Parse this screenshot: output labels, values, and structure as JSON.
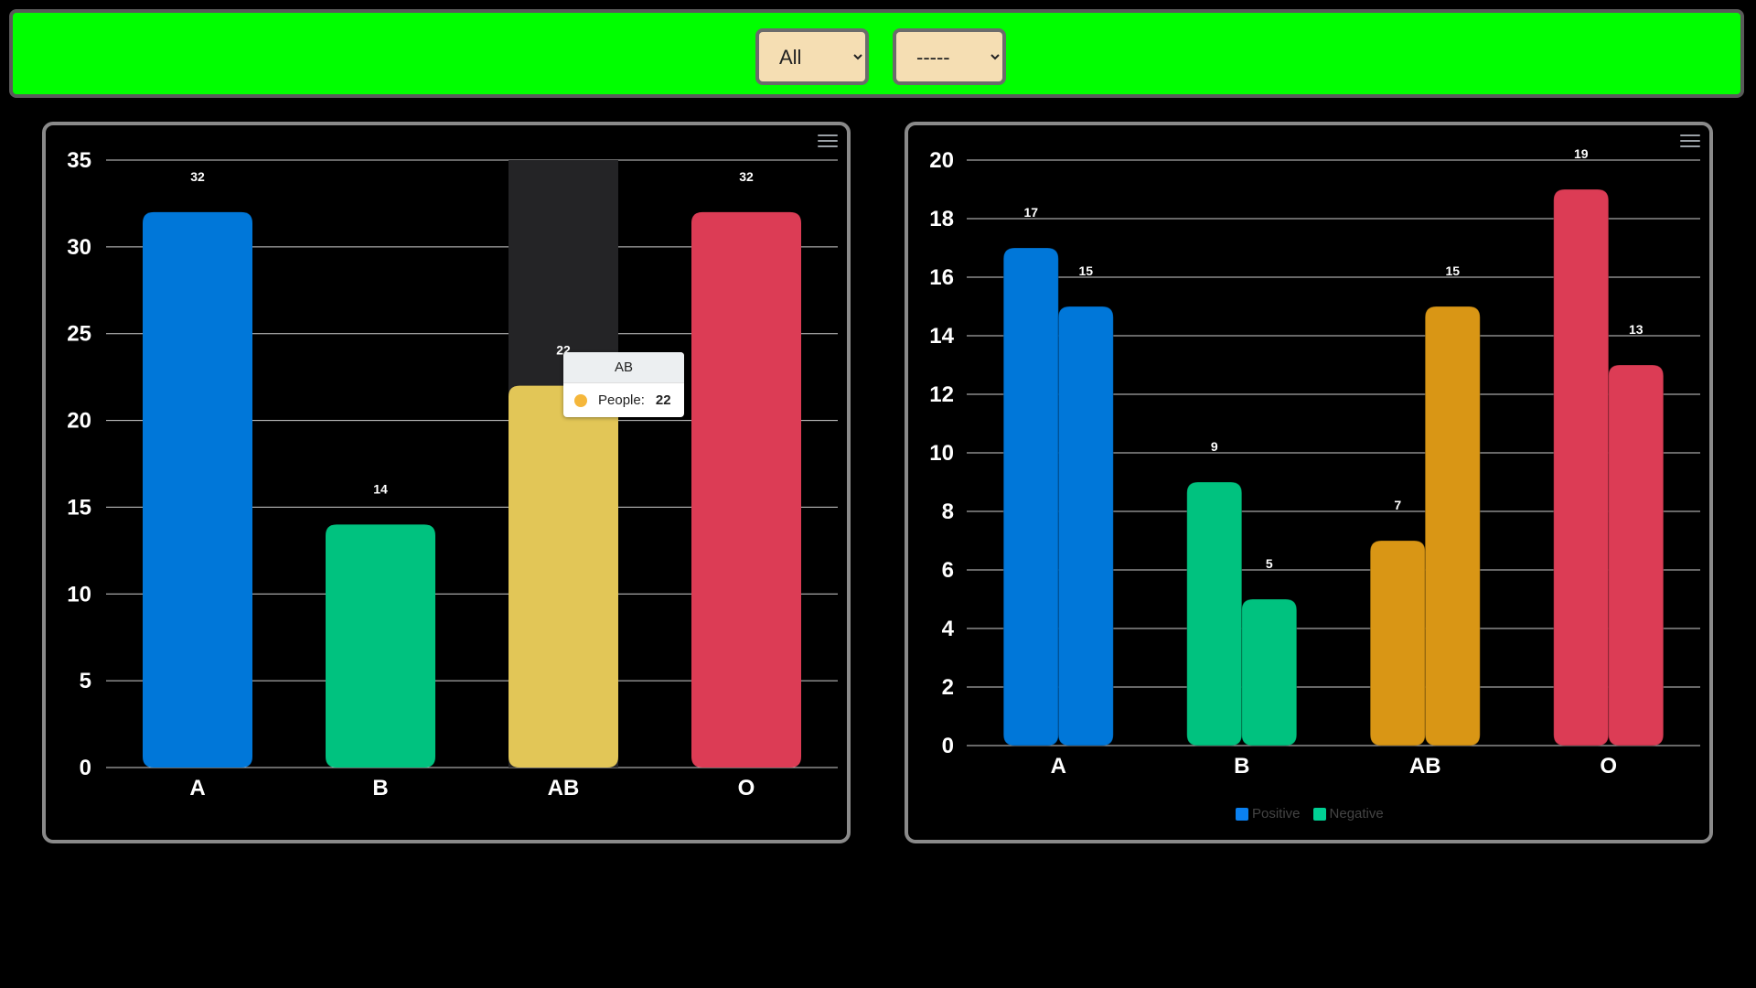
{
  "filters": {
    "group_select": {
      "value": "All",
      "options": [
        "All"
      ]
    },
    "rh_select": {
      "value": "-----",
      "options": [
        "-----"
      ]
    }
  },
  "chart_data": [
    {
      "type": "bar",
      "categories": [
        "A",
        "B",
        "AB",
        "O"
      ],
      "values": [
        32,
        14,
        22,
        32
      ],
      "colors": [
        "#0077d9",
        "#00c27f",
        "#e2c657",
        "#dc3c55"
      ],
      "ylim": [
        0,
        35
      ],
      "yticks": [
        0,
        5,
        10,
        15,
        20,
        25,
        30,
        35
      ],
      "grid": true,
      "tooltip": {
        "category": "AB",
        "series": "People",
        "value": 22,
        "color": "#f5b73b"
      }
    },
    {
      "type": "bar",
      "categories": [
        "A",
        "B",
        "AB",
        "O"
      ],
      "series": [
        {
          "name": "Positive",
          "values": [
            17,
            9,
            7,
            19
          ]
        },
        {
          "name": "Negative",
          "values": [
            15,
            5,
            15,
            13
          ]
        }
      ],
      "category_colors": [
        "#0077d9",
        "#00c27f",
        "#d99615",
        "#dc3c55"
      ],
      "legend_colors": [
        "#0a80f0",
        "#00d094"
      ],
      "ylim": [
        0,
        20
      ],
      "yticks": [
        0,
        2,
        4,
        6,
        8,
        10,
        12,
        14,
        16,
        18,
        20
      ],
      "grid": true,
      "legend": "bottom-center"
    }
  ]
}
